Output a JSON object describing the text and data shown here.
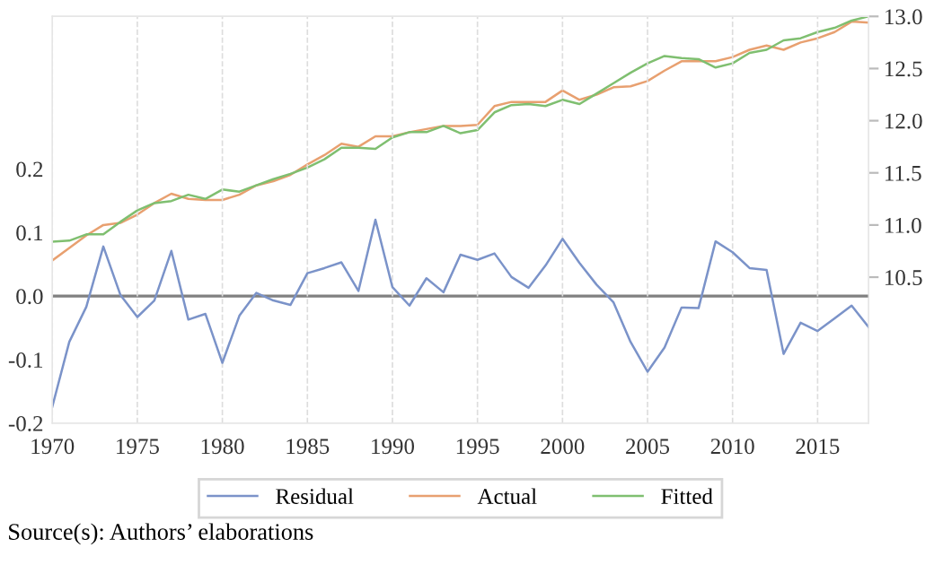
{
  "chart_data": {
    "type": "line",
    "x": [
      1970,
      1971,
      1972,
      1973,
      1974,
      1975,
      1976,
      1977,
      1978,
      1979,
      1980,
      1981,
      1982,
      1983,
      1984,
      1985,
      1986,
      1987,
      1988,
      1989,
      1990,
      1991,
      1992,
      1993,
      1994,
      1995,
      1996,
      1997,
      1998,
      1999,
      2000,
      2001,
      2002,
      2003,
      2004,
      2005,
      2006,
      2007,
      2008,
      2009,
      2010,
      2011,
      2012,
      2013,
      2014,
      2015,
      2016,
      2017,
      2018
    ],
    "series": [
      {
        "name": "Residual",
        "color": "#7b93c9",
        "values": [
          -0.174,
          -0.072,
          -0.017,
          0.078,
          0.002,
          -0.033,
          -0.007,
          0.071,
          -0.037,
          -0.028,
          -0.105,
          -0.031,
          0.005,
          -0.007,
          -0.014,
          0.036,
          0.044,
          0.053,
          0.008,
          0.12,
          0.014,
          -0.015,
          0.028,
          0.006,
          0.065,
          0.057,
          0.067,
          0.03,
          0.013,
          0.048,
          0.09,
          0.052,
          0.018,
          -0.01,
          -0.072,
          -0.119,
          -0.081,
          -0.018,
          -0.019,
          0.086,
          0.069,
          0.044,
          0.041,
          -0.091,
          -0.042,
          -0.055,
          -0.035,
          -0.015,
          -0.049
        ]
      },
      {
        "name": "Actual",
        "color": "#e8a070",
        "axis": "y2",
        "values": [
          10.66,
          10.78,
          10.9,
          11.0,
          11.02,
          11.1,
          11.21,
          11.3,
          11.25,
          11.24,
          11.24,
          11.29,
          11.38,
          11.42,
          11.48,
          11.58,
          11.67,
          11.78,
          11.75,
          11.85,
          11.85,
          11.89,
          11.92,
          11.95,
          11.95,
          11.96,
          12.14,
          12.18,
          12.18,
          12.18,
          12.29,
          12.2,
          12.25,
          12.32,
          12.33,
          12.38,
          12.48,
          12.57,
          12.57,
          12.57,
          12.61,
          12.68,
          12.72,
          12.68,
          12.75,
          12.79,
          12.85,
          12.95,
          12.94
        ]
      },
      {
        "name": "Fitted",
        "color": "#7fbf70",
        "axis": "y2",
        "values": [
          10.84,
          10.85,
          10.91,
          10.91,
          11.03,
          11.14,
          11.21,
          11.23,
          11.29,
          11.25,
          11.34,
          11.32,
          11.38,
          11.44,
          11.49,
          11.55,
          11.63,
          11.74,
          11.74,
          11.73,
          11.84,
          11.89,
          11.89,
          11.95,
          11.88,
          11.91,
          12.08,
          12.15,
          12.16,
          12.14,
          12.2,
          12.16,
          12.26,
          12.36,
          12.46,
          12.55,
          12.62,
          12.6,
          12.59,
          12.51,
          12.55,
          12.65,
          12.68,
          12.77,
          12.79,
          12.85,
          12.89,
          12.96,
          13.0
        ]
      }
    ],
    "xlim": [
      1970,
      2018
    ],
    "xticks": [
      1970,
      1975,
      1980,
      1985,
      1990,
      1995,
      2000,
      2005,
      2010,
      2015
    ],
    "ylim": [
      -0.2,
      0.44
    ],
    "yticks": [
      -0.2,
      -0.1,
      {
        "value": 0,
        "label": "0.0"
      },
      0.1,
      0.2
    ],
    "y2lim": [
      9.1,
      13.0
    ],
    "y2ticks": [
      10.5,
      {
        "value": 11,
        "label": "11.0"
      },
      11.5,
      {
        "value": 12,
        "label": "12.0"
      },
      12.5,
      {
        "value": 13,
        "label": "13.0"
      }
    ],
    "ref_lines": [
      {
        "axis": "y",
        "value": 0,
        "color": "#808080"
      }
    ],
    "grid": "x",
    "legend": "bottom",
    "annotations": [
      "Source(s): Authors’ elaborations"
    ]
  }
}
